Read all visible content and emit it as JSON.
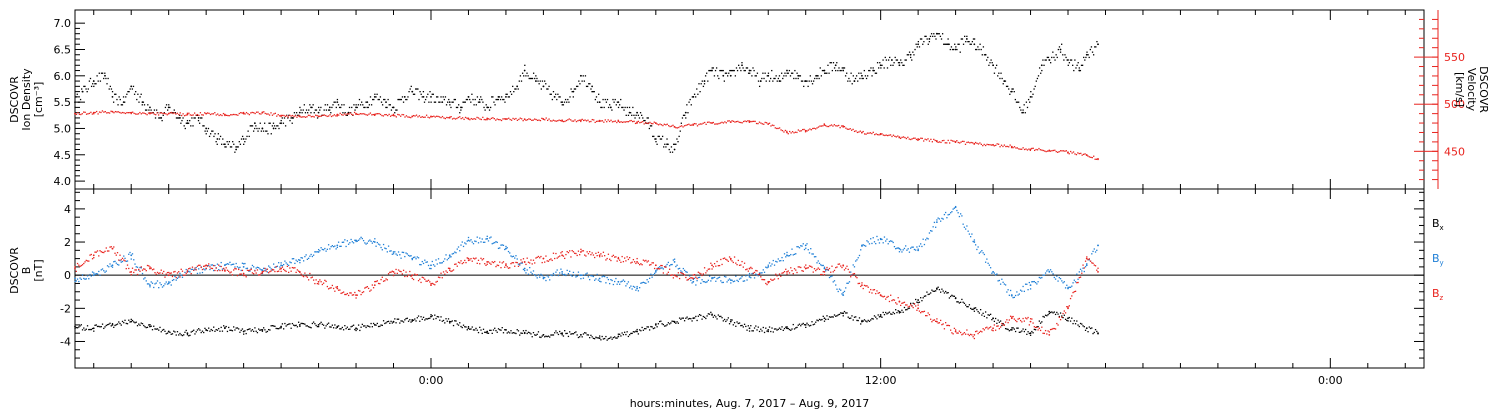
{
  "colors": {
    "black": "#000000",
    "red": "#e8231e",
    "blue": "#1f7fd6"
  },
  "x_axis": {
    "title": "hours:minutes, Aug.  7, 2017 – Aug.  9, 2017",
    "range_hours": [
      -9.5,
      26.5
    ],
    "major_ticks": [
      {
        "hour": 0,
        "label": "0:00"
      },
      {
        "hour": 12,
        "label": "12:00"
      },
      {
        "hour": 24,
        "label": "0:00"
      }
    ],
    "minor_step_hours": 1
  },
  "chart_data": [
    {
      "type": "scatter",
      "panel": "top",
      "ylabel_left": [
        "DSCOVR",
        "Ion Density",
        "[cm⁻³]"
      ],
      "ylabel_right": [
        "DSCOVR",
        "Velocity",
        "[km/s]"
      ],
      "ylim_left": [
        3.85,
        7.25
      ],
      "ylim_right": [
        410,
        600
      ],
      "yticks_left": [
        "4.0",
        "4.5",
        "5.0",
        "5.5",
        "6.0",
        "6.5",
        "7.0"
      ],
      "yticks_right": [
        "450",
        "500",
        "550"
      ],
      "series": [
        {
          "name": "Ion Density",
          "color": "#000000",
          "axis": "left",
          "x": [
            -9.5,
            -9.3,
            -9.0,
            -8.7,
            -8.5,
            -8.2,
            -8.0,
            -7.7,
            -7.5,
            -7.2,
            -7.0,
            -6.7,
            -6.5,
            -6.2,
            -6.0,
            -5.7,
            -5.5,
            -5.2,
            -5.0,
            -4.7,
            -4.5,
            -4.2,
            -4.0,
            -3.7,
            -3.5,
            -3.2,
            -3.0,
            -2.7,
            -2.5,
            -2.2,
            -2.0,
            -1.7,
            -1.5,
            -1.2,
            -1.0,
            -0.7,
            -0.5,
            -0.2,
            0.0,
            0.3,
            0.5,
            0.8,
            1.0,
            1.3,
            1.5,
            1.8,
            2.0,
            2.3,
            2.5,
            2.8,
            3.0,
            3.3,
            3.5,
            3.8,
            4.0,
            4.3,
            4.5,
            4.8,
            5.0,
            5.3,
            5.5,
            5.8,
            6.0,
            6.3,
            6.5,
            6.8,
            7.0,
            7.3,
            7.5,
            7.8,
            8.0,
            8.3,
            8.5,
            8.8,
            9.0,
            9.3,
            9.5,
            9.8,
            10.0,
            10.3,
            10.5,
            10.8,
            11.0,
            11.3,
            11.5,
            11.8,
            12.0,
            12.3,
            12.5,
            12.8,
            13.0,
            13.3,
            13.5,
            13.8,
            14.0,
            14.3,
            14.5,
            14.8,
            15.0,
            15.3,
            15.5,
            15.8,
            16.0,
            16.3,
            16.5,
            16.8,
            17.0,
            17.3,
            17.5,
            17.8
          ],
          "y": [
            5.5,
            5.7,
            5.9,
            6.0,
            5.6,
            5.5,
            5.8,
            5.5,
            5.4,
            5.2,
            5.4,
            5.2,
            5.1,
            5.2,
            5.0,
            4.8,
            4.7,
            4.6,
            4.8,
            5.1,
            5.0,
            5.0,
            5.1,
            5.2,
            5.3,
            5.4,
            5.3,
            5.4,
            5.5,
            5.3,
            5.4,
            5.5,
            5.6,
            5.5,
            5.4,
            5.6,
            5.7,
            5.6,
            5.6,
            5.5,
            5.5,
            5.4,
            5.6,
            5.5,
            5.4,
            5.6,
            5.6,
            5.8,
            6.1,
            5.9,
            5.8,
            5.6,
            5.5,
            5.7,
            6.0,
            5.8,
            5.5,
            5.4,
            5.5,
            5.3,
            5.3,
            5.1,
            4.8,
            4.7,
            4.6,
            5.3,
            5.6,
            5.9,
            6.1,
            6.0,
            6.0,
            6.2,
            6.1,
            5.9,
            6.0,
            5.9,
            6.1,
            6.0,
            5.9,
            6.0,
            6.1,
            6.2,
            6.1,
            5.9,
            6.0,
            6.1,
            6.2,
            6.3,
            6.2,
            6.4,
            6.6,
            6.7,
            6.8,
            6.6,
            6.5,
            6.7,
            6.6,
            6.4,
            6.2,
            5.9,
            5.7,
            5.3,
            5.6,
            6.2,
            6.3,
            6.5,
            6.3,
            6.1,
            6.4,
            6.6
          ]
        },
        {
          "name": "Velocity",
          "color": "#e8231e",
          "axis": "right",
          "x": [
            -9.5,
            -9.0,
            -8.5,
            -8.0,
            -7.5,
            -7.0,
            -6.5,
            -6.0,
            -5.5,
            -5.0,
            -4.5,
            -4.0,
            -3.5,
            -3.0,
            -2.5,
            -2.0,
            -1.5,
            -1.0,
            -0.5,
            0.0,
            0.5,
            1.0,
            1.5,
            2.0,
            2.5,
            3.0,
            3.5,
            4.0,
            4.5,
            5.0,
            5.5,
            6.0,
            6.5,
            7.0,
            7.5,
            8.0,
            8.5,
            9.0,
            9.5,
            10.0,
            10.5,
            11.0,
            11.5,
            12.0,
            12.5,
            13.0,
            13.5,
            14.0,
            14.5,
            15.0,
            15.5,
            16.0,
            16.5,
            17.0,
            17.5,
            17.8
          ],
          "y": [
            490,
            491,
            492,
            491,
            490,
            490,
            489,
            490,
            489,
            490,
            491,
            488,
            487,
            487,
            489,
            490,
            489,
            488,
            487,
            487,
            486,
            485,
            485,
            484,
            484,
            484,
            483,
            483,
            482,
            482,
            481,
            480,
            476,
            478,
            480,
            481,
            482,
            479,
            470,
            472,
            478,
            476,
            470,
            468,
            465,
            463,
            461,
            460,
            458,
            457,
            455,
            452,
            451,
            449,
            446,
            442
          ]
        }
      ]
    },
    {
      "type": "scatter",
      "panel": "bottom",
      "ylabel_left": [
        "DSCOVR",
        "B",
        "[nT]"
      ],
      "ylim": [
        -5.6,
        5.2
      ],
      "yticks": [
        "-4",
        "-2",
        "0",
        "2",
        "4"
      ],
      "zero_line": true,
      "legend": [
        "Bx",
        "By",
        "Bz"
      ],
      "legend_position": "right",
      "series": [
        {
          "name": "Bx",
          "color": "#000000",
          "x": [
            -9.5,
            -9.0,
            -8.5,
            -8.0,
            -7.5,
            -7.0,
            -6.5,
            -6.0,
            -5.5,
            -5.0,
            -4.5,
            -4.0,
            -3.5,
            -3.0,
            -2.5,
            -2.0,
            -1.5,
            -1.0,
            -0.5,
            0.0,
            0.5,
            1.0,
            1.5,
            2.0,
            2.5,
            3.0,
            3.5,
            4.0,
            4.5,
            5.0,
            5.5,
            6.0,
            6.5,
            7.0,
            7.5,
            8.0,
            8.5,
            9.0,
            9.5,
            10.0,
            10.5,
            11.0,
            11.5,
            12.0,
            12.5,
            13.0,
            13.5,
            14.0,
            14.5,
            15.0,
            15.5,
            16.0,
            16.5,
            17.0,
            17.5,
            17.8
          ],
          "y": [
            -3.1,
            -3.2,
            -3.0,
            -2.8,
            -3.1,
            -3.4,
            -3.5,
            -3.3,
            -3.2,
            -3.4,
            -3.3,
            -3.1,
            -3.0,
            -3.0,
            -3.1,
            -3.2,
            -3.0,
            -2.8,
            -2.7,
            -2.5,
            -2.8,
            -3.2,
            -3.4,
            -3.3,
            -3.5,
            -3.6,
            -3.5,
            -3.6,
            -3.8,
            -3.7,
            -3.4,
            -3.0,
            -2.8,
            -2.6,
            -2.4,
            -2.8,
            -3.2,
            -3.3,
            -3.2,
            -3.0,
            -2.6,
            -2.3,
            -2.8,
            -2.4,
            -2.2,
            -1.5,
            -0.8,
            -1.4,
            -2.0,
            -2.6,
            -3.3,
            -3.5,
            -2.2,
            -2.6,
            -3.2,
            -3.5
          ]
        },
        {
          "name": "By",
          "color": "#1f7fd6",
          "x": [
            -9.5,
            -9.0,
            -8.5,
            -8.0,
            -7.5,
            -7.0,
            -6.5,
            -6.0,
            -5.5,
            -5.0,
            -4.5,
            -4.0,
            -3.5,
            -3.0,
            -2.5,
            -2.0,
            -1.5,
            -1.0,
            -0.5,
            0.0,
            0.5,
            1.0,
            1.5,
            2.0,
            2.5,
            3.0,
            3.5,
            4.0,
            4.5,
            5.0,
            5.5,
            6.0,
            6.5,
            7.0,
            7.5,
            8.0,
            8.5,
            9.0,
            9.5,
            10.0,
            10.5,
            11.0,
            11.5,
            12.0,
            12.5,
            13.0,
            13.5,
            14.0,
            14.5,
            15.0,
            15.5,
            16.0,
            16.5,
            17.0,
            17.5,
            17.8
          ],
          "y": [
            -0.2,
            0.0,
            0.6,
            1.2,
            -0.6,
            -0.5,
            0.2,
            0.4,
            0.6,
            0.5,
            0.3,
            0.6,
            0.9,
            1.4,
            1.8,
            2.1,
            2.0,
            1.4,
            1.0,
            0.6,
            1.2,
            2.1,
            2.2,
            1.6,
            0.4,
            -0.2,
            0.2,
            0.0,
            -0.2,
            -0.4,
            -0.8,
            0.2,
            0.8,
            -0.4,
            -0.2,
            -0.3,
            -0.1,
            0.5,
            1.2,
            1.8,
            0.4,
            -1.2,
            1.8,
            2.2,
            1.6,
            1.5,
            3.2,
            4.1,
            2.0,
            0.2,
            -1.2,
            -0.6,
            0.2,
            -0.8,
            0.6,
            1.8
          ]
        },
        {
          "name": "Bz",
          "color": "#e8231e",
          "x": [
            -9.5,
            -9.0,
            -8.5,
            -8.0,
            -7.5,
            -7.0,
            -6.5,
            -6.0,
            -5.5,
            -5.0,
            -4.5,
            -4.0,
            -3.5,
            -3.0,
            -2.5,
            -2.0,
            -1.5,
            -1.0,
            -0.5,
            0.0,
            0.5,
            1.0,
            1.5,
            2.0,
            2.5,
            3.0,
            3.5,
            4.0,
            4.5,
            5.0,
            5.5,
            6.0,
            6.5,
            7.0,
            7.5,
            8.0,
            8.5,
            9.0,
            9.5,
            10.0,
            10.5,
            11.0,
            11.5,
            12.0,
            12.5,
            13.0,
            13.5,
            14.0,
            14.5,
            15.0,
            15.5,
            16.0,
            16.5,
            17.0,
            17.5,
            17.8
          ],
          "y": [
            0.4,
            1.2,
            1.6,
            0.2,
            0.4,
            0.0,
            0.2,
            0.6,
            0.3,
            0.1,
            0.2,
            0.4,
            0.2,
            -0.4,
            -0.8,
            -1.2,
            -0.6,
            0.2,
            0.0,
            -0.6,
            0.4,
            1.0,
            0.8,
            0.6,
            0.8,
            1.0,
            1.2,
            1.4,
            1.2,
            1.0,
            0.8,
            0.6,
            0.0,
            -0.2,
            0.6,
            1.0,
            0.4,
            -0.4,
            0.2,
            0.4,
            0.2,
            0.6,
            -0.6,
            -1.2,
            -1.6,
            -2.0,
            -2.8,
            -3.4,
            -3.6,
            -3.2,
            -2.6,
            -2.8,
            -3.6,
            -2.0,
            1.0,
            0.2
          ]
        }
      ]
    }
  ]
}
